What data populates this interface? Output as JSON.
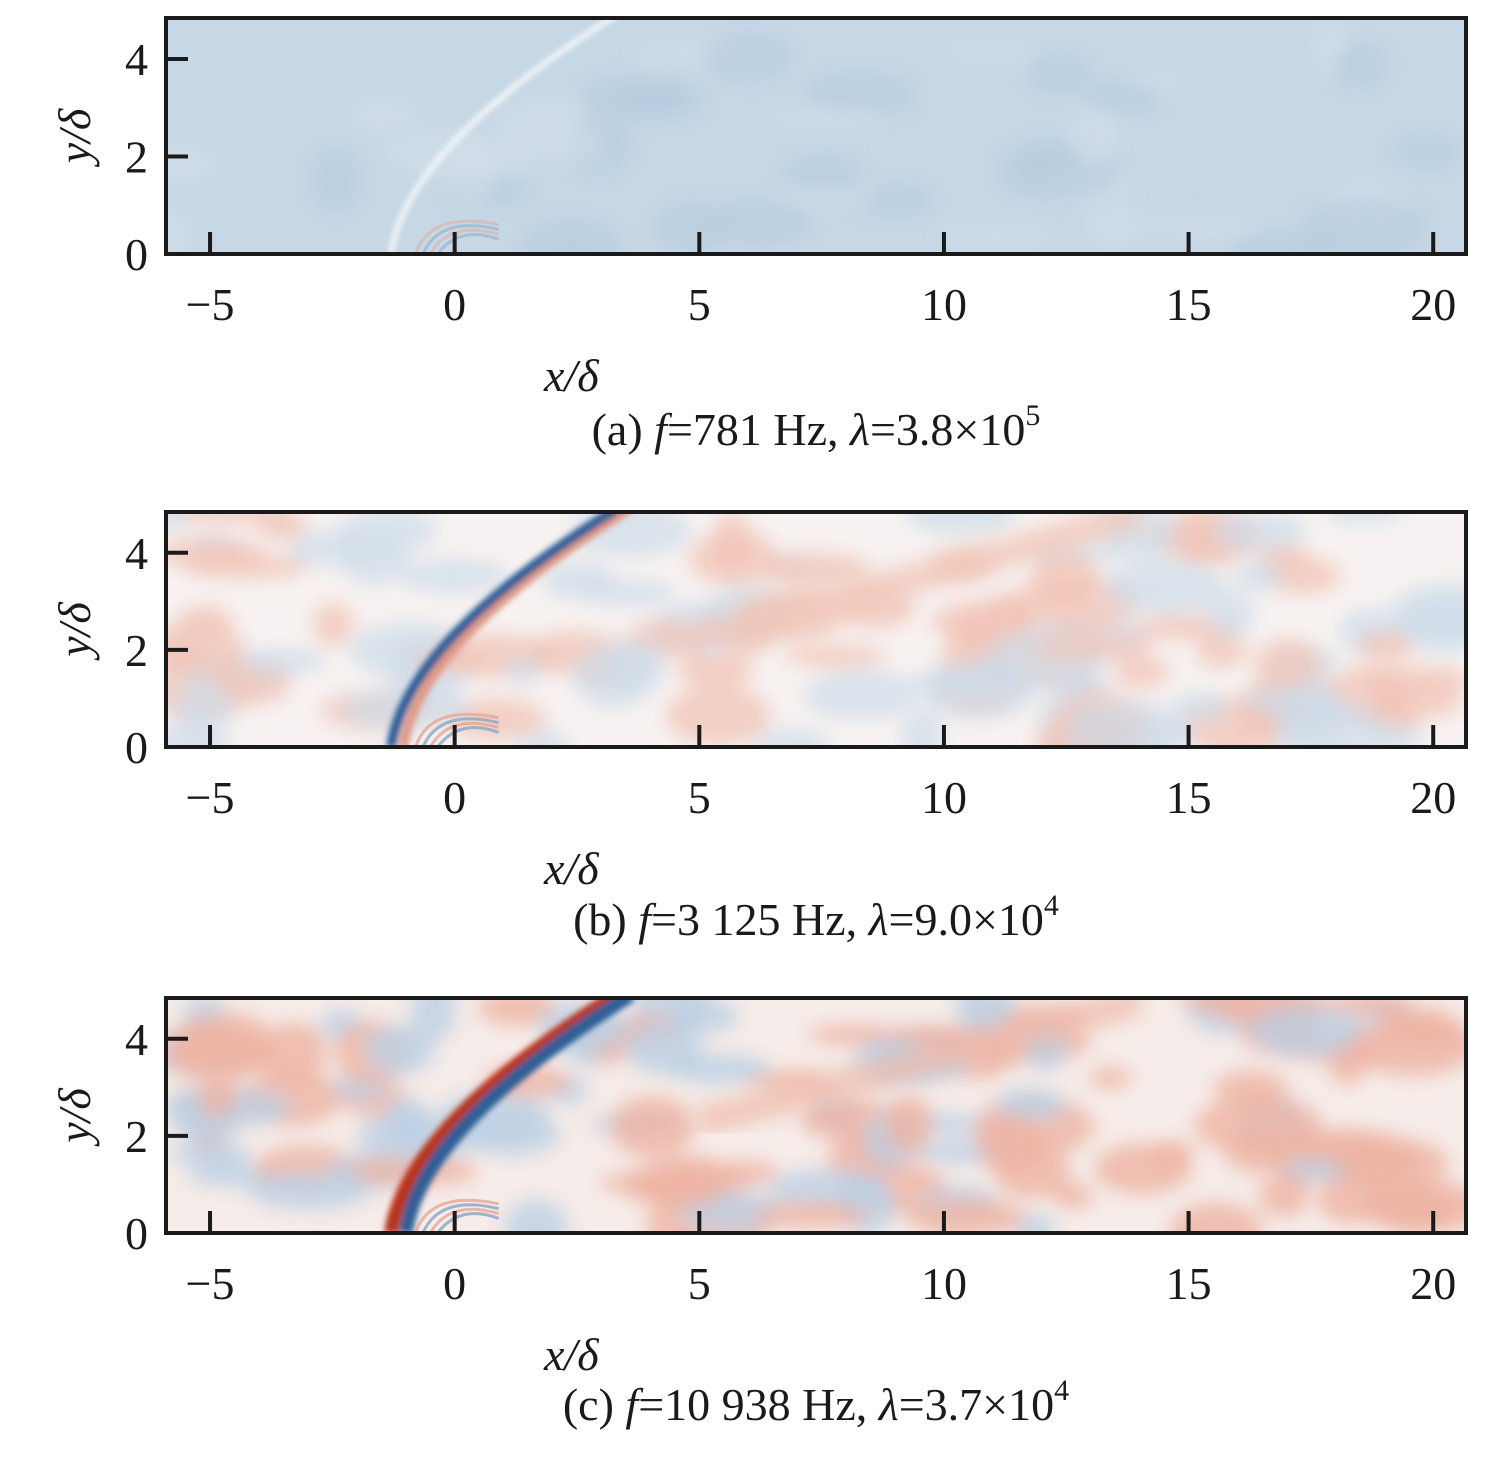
{
  "chart_data": {
    "type": "heatmap",
    "panels": [
      {
        "id": "a",
        "caption_label": "(a)",
        "f_symbol": "f",
        "f_text": "=781 Hz,",
        "lambda_symbol": "λ",
        "lambda_text": "=3.8×10",
        "lambda_exp": "5",
        "frequency_hz": 781,
        "lambda": 380000,
        "style": "uniform-blue",
        "colors": {
          "base": "#c6d7e5",
          "shock": "#f2f5f8"
        }
      },
      {
        "id": "b",
        "caption_label": "(b)",
        "f_symbol": "f",
        "f_text": "=3 125 Hz,",
        "lambda_symbol": "λ",
        "lambda_text": "=9.0×10",
        "lambda_exp": "4",
        "frequency_hz": 3125,
        "lambda": 90000,
        "style": "diverging-weak",
        "colors": {
          "base": "#f7f2f1",
          "shock": "#2f5f97",
          "shock2": "#e09a88"
        }
      },
      {
        "id": "c",
        "caption_label": "(c)",
        "f_symbol": "f",
        "f_text": "=10 938 Hz,",
        "lambda_symbol": "λ",
        "lambda_text": "=3.7×10",
        "lambda_exp": "4",
        "frequency_hz": 10938,
        "lambda": 37000,
        "style": "diverging-strong",
        "colors": {
          "base": "#f6ece9",
          "shock": "#b8341f",
          "shock2": "#2f5f97"
        }
      }
    ],
    "xlabel": "x/δ",
    "ylabel": "y/δ",
    "xlim": [
      -5.9,
      20.67
    ],
    "ylim": [
      0,
      4.84
    ],
    "xticks": [
      -5,
      0,
      5,
      10,
      15,
      20
    ],
    "xtick_labels": [
      "−5",
      "0",
      "5",
      "10",
      "15",
      "20"
    ],
    "yticks": [
      0,
      2,
      4
    ],
    "ytick_labels": [
      "0",
      "2",
      "4"
    ],
    "colormap": {
      "negative": "#2f5f97",
      "zero": "#f7f7f7",
      "positive": "#c0402a"
    }
  }
}
